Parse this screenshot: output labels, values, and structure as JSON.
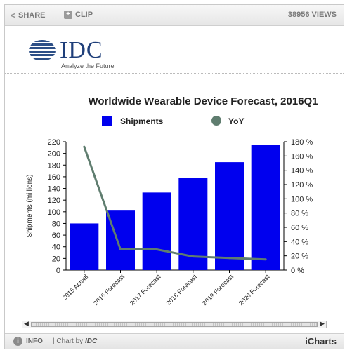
{
  "toolbar": {
    "share_label": "SHARE",
    "clip_label": "CLIP",
    "views": "38956 VIEWS"
  },
  "logo": {
    "text": "IDC",
    "tagline": "Analyze the Future"
  },
  "footer": {
    "info_label": "INFO",
    "chart_by_prefix": "| Chart by",
    "chart_by_brand": "IDC",
    "brand": "iCharts"
  },
  "chart_data": {
    "type": "bar",
    "title": "Worldwide Wearable Device Forecast, 2016Q1",
    "categories": [
      "2015 Actual",
      "2016 Forecast",
      "2017 Forecast",
      "2018 Forecast",
      "2019 Forecast",
      "2020 Forecast"
    ],
    "series": [
      {
        "name": "Shipments",
        "type": "bar",
        "axis": "left",
        "values": [
          80,
          102,
          133,
          158,
          185,
          214
        ]
      },
      {
        "name": "YoY",
        "type": "line",
        "axis": "right",
        "values": [
          173,
          29,
          29,
          19,
          17,
          15
        ]
      }
    ],
    "ylabel": "Shipments (millions)",
    "xlabel": "",
    "ylim": [
      0,
      220
    ],
    "yticks": [
      0,
      20,
      40,
      60,
      80,
      100,
      120,
      140,
      160,
      180,
      200,
      220
    ],
    "y2lim": [
      0,
      180
    ],
    "y2ticks": [
      "0 %",
      "20 %",
      "40 %",
      "60 %",
      "80 %",
      "100 %",
      "120 %",
      "140 %",
      "160 %",
      "180 %"
    ],
    "legend_position": "top",
    "grid": false,
    "colors": {
      "bar": "#0000ee",
      "line": "#5f7d6f"
    }
  }
}
